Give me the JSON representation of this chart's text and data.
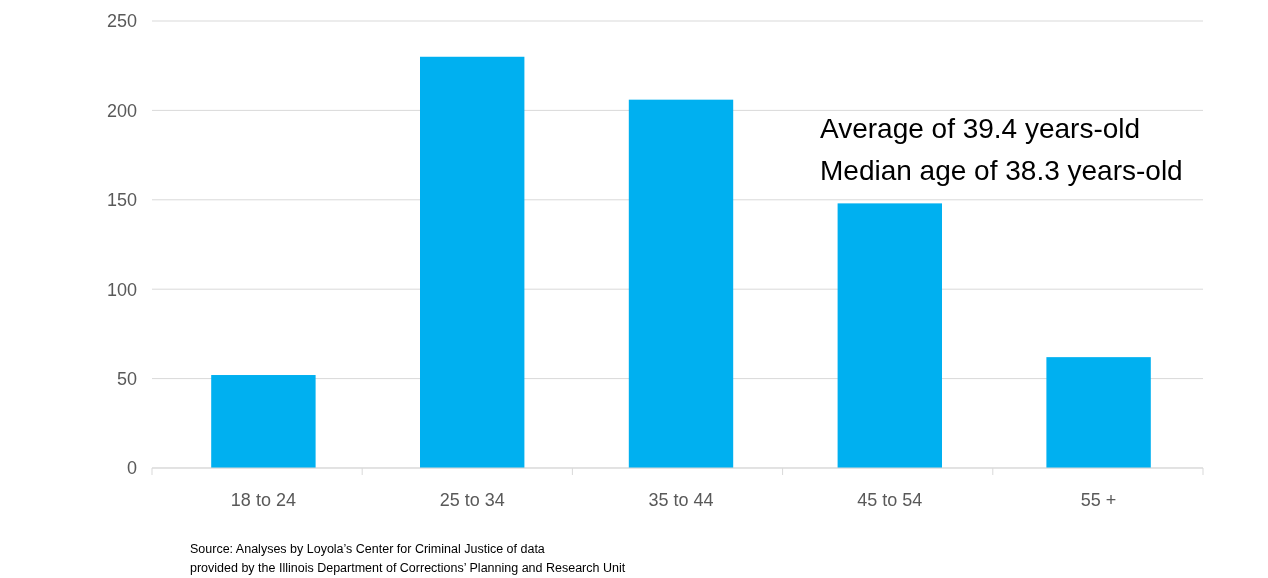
{
  "chart_data": {
    "type": "bar",
    "categories": [
      "18 to 24",
      "25 to 34",
      "35 to 44",
      "45 to 54",
      "55 +"
    ],
    "values": [
      52,
      230,
      206,
      148,
      62
    ],
    "color": "#00b0f0",
    "ylim": [
      0,
      250
    ],
    "yticks": [
      0,
      50,
      100,
      150,
      200,
      250
    ],
    "grid": "y",
    "annotations": [
      "Average of 39.4 years-old",
      "Median age of 38.3 years-old",
      "Source: Analyses by Loyola’s Center for Criminal Justice of data",
      "provided by the Illinois Department of Corrections’ Planning and Research Unit"
    ]
  }
}
